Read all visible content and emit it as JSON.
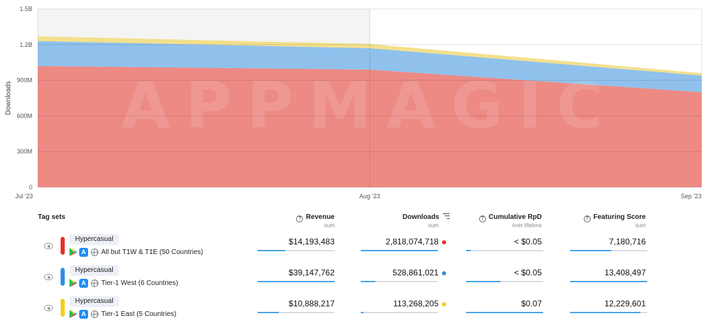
{
  "chart_data": {
    "type": "area",
    "stacked": true,
    "x": [
      "Jul '23",
      "Aug '23",
      "Sep '23"
    ],
    "ylabel": "Downloads",
    "y_ticks": [
      "0",
      "300M",
      "600M",
      "900M",
      "1.2B",
      "1.5B"
    ],
    "ylim": [
      0,
      1500000000
    ],
    "grid": true,
    "highlighted_period": "Jul '23 to Aug '23",
    "watermark": "APPMAGIC",
    "series": [
      {
        "key": "t1e",
        "color": "#ed8a84",
        "values": [
          1020000000,
          990000000,
          800000000
        ]
      },
      {
        "key": "t1w",
        "color": "#8fc1ec",
        "values": [
          210000000,
          180000000,
          140000000
        ]
      },
      {
        "key": "other",
        "color": "#f3e08c",
        "values": [
          40000000,
          35000000,
          20000000
        ]
      }
    ]
  },
  "table": {
    "header": {
      "tag_sets": "Tag sets",
      "revenue": "Revenue",
      "revenue_sub": "sum",
      "downloads": "Downloads",
      "downloads_sub": "sum",
      "rpd": "Cumulative RpD",
      "rpd_sub": "over lifetime",
      "featuring": "Featuring Score",
      "featuring_sub": "sum"
    },
    "rows": [
      {
        "color": "#e53329",
        "dot_color": "#e53329",
        "tag": "Hypercasual",
        "region": "All but T1W & T1E (50 Countries)",
        "revenue": "$14,193,483",
        "revenue_level": 0.36,
        "downloads": "2,818,074,718",
        "downloads_level": 1.0,
        "rpd": "< $0.05",
        "rpd_level": 0.06,
        "featuring": "7,180,716",
        "featuring_level": 0.54
      },
      {
        "color": "#2d8fe6",
        "dot_color": "#2d8fe6",
        "tag": "Hypercasual",
        "region": "Tier-1 West (6 Countries)",
        "revenue": "$39,147,762",
        "revenue_level": 1.0,
        "downloads": "528,861,021",
        "downloads_level": 0.19,
        "rpd": "< $0.05",
        "rpd_level": 0.45,
        "featuring": "13,408,497",
        "featuring_level": 1.0
      },
      {
        "color": "#f2cf1d",
        "dot_color": "#f2cf1d",
        "tag": "Hypercasual",
        "region": "Tier-1 East (5 Countries)",
        "revenue": "$10,888,217",
        "revenue_level": 0.28,
        "downloads": "113,268,205",
        "downloads_level": 0.04,
        "rpd": "$0.07",
        "rpd_level": 1.0,
        "featuring": "12,229,601",
        "featuring_level": 0.91
      }
    ]
  }
}
